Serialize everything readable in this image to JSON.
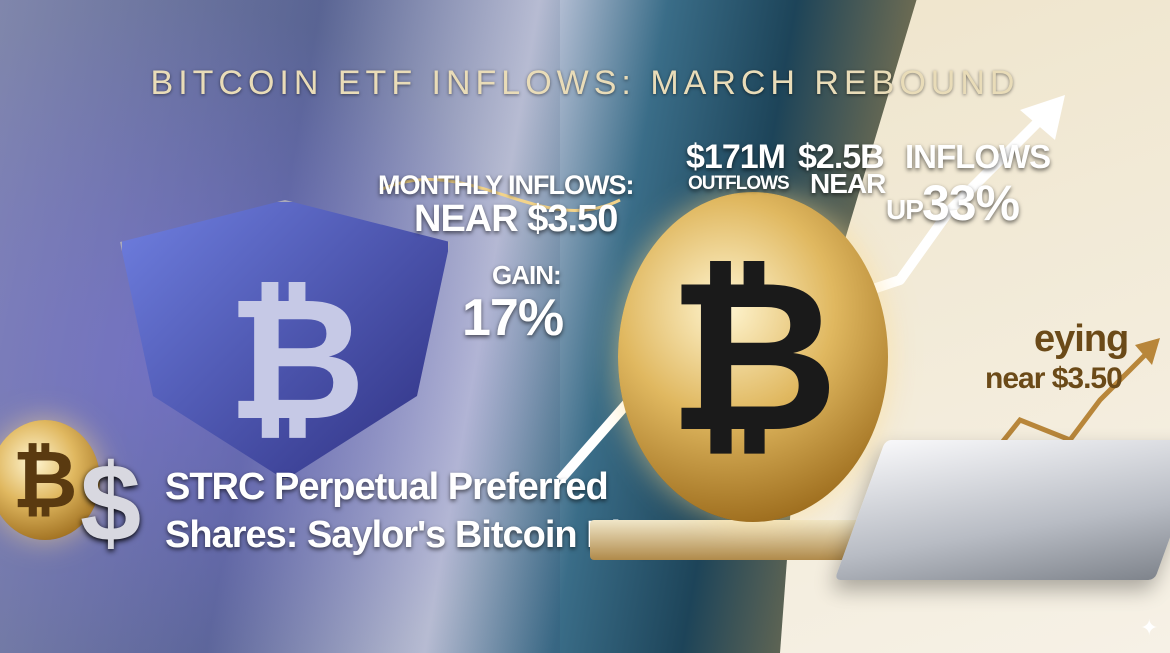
{
  "title": "BITCOIN ETF INFLOWS: MARCH REBOUND",
  "left": {
    "monthly_label": "MONTHLY INFLOWS:",
    "monthly_value": "NEAR $3.50",
    "gain_label": "GAIN:",
    "gain_value": "17%",
    "headline_line1": "STRC Perpetual Preferred",
    "headline_line2": "Shares: Saylor's Bitcoin Play",
    "bitcoin_symbol": "₿",
    "dollar_symbol": "$"
  },
  "center": {
    "outflows_value": "$171M",
    "outflows_label": "OUTFLOWS",
    "near_value": "$2.5B",
    "near_label": "NEAR",
    "inflows_label": "INFLOWS",
    "inflows_prefix": "UP",
    "inflows_value": "33%",
    "bitcoin_symbol": "₿"
  },
  "right": {
    "eying": "eying",
    "near_value": "near $3.50"
  },
  "colors": {
    "gold": "#e0b860",
    "title": "#e9dcb8",
    "brown_text": "#6b4a18"
  }
}
